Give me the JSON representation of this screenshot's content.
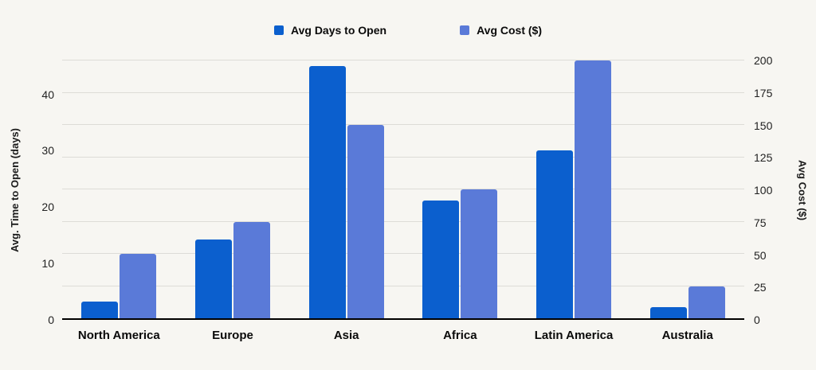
{
  "chart_data": {
    "type": "bar",
    "title": "",
    "categories": [
      "North America",
      "Europe",
      "Asia",
      "Africa",
      "Latin America",
      "Australia"
    ],
    "series": [
      {
        "name": "Avg Days to Open",
        "axis": "left",
        "color": "#0b5fce",
        "values": [
          3,
          14,
          45,
          21,
          30,
          2
        ]
      },
      {
        "name": "Avg Cost ($)",
        "axis": "right",
        "color": "#5a7ad8",
        "values": [
          50,
          75,
          150,
          100,
          200,
          25
        ]
      }
    ],
    "left_axis": {
      "label": "Avg. Time to Open (days)",
      "ticks": [
        0,
        10,
        20,
        30,
        40
      ],
      "min": 0,
      "max": 46
    },
    "right_axis": {
      "label": "Avg Cost ($)",
      "ticks": [
        0,
        25,
        50,
        75,
        100,
        125,
        150,
        175,
        200
      ],
      "min": 0,
      "max": 200
    },
    "grid": true,
    "legend_position": "top"
  }
}
